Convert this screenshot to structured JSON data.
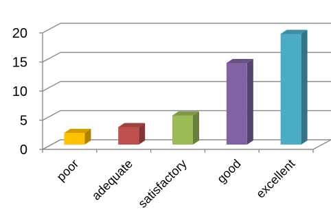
{
  "chart_data": {
    "type": "bar",
    "categories": [
      "poor",
      "adequate",
      "satisfactory",
      "good",
      "excellent"
    ],
    "values": [
      2,
      3,
      5,
      14,
      19
    ],
    "colors": [
      "#FFC000",
      "#C0504D",
      "#9BBB59",
      "#8064A2",
      "#4BACC6"
    ],
    "yticks": [
      "0",
      "5",
      "10",
      "15",
      "20"
    ],
    "ylim": [
      0,
      20
    ],
    "grid": true,
    "three_d": true,
    "title": "",
    "xlabel": "",
    "ylabel": ""
  }
}
